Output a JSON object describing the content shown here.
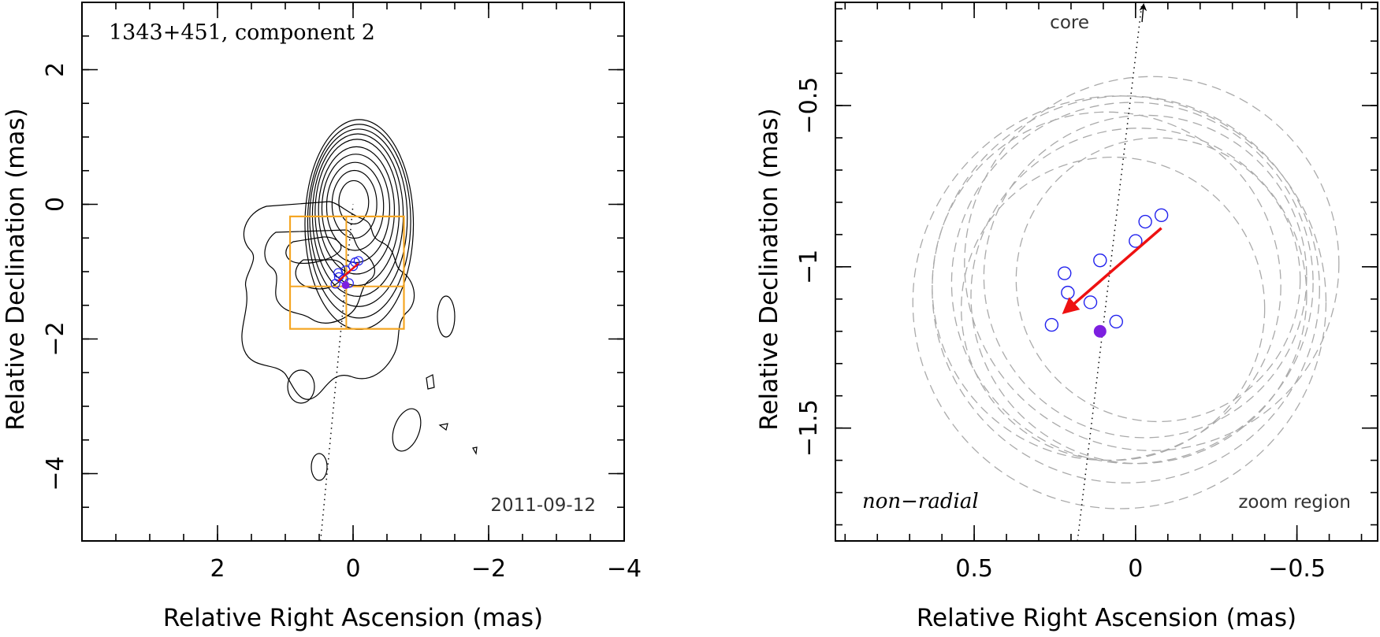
{
  "colors": {
    "contour": "#000000",
    "zoom_box": "#f5a623",
    "epoch_marker": "#2222ee",
    "reference_marker": "#7d1fe0",
    "arrow": "#ee1111",
    "halo": "#aaaaaa"
  },
  "chart_data": [
    {
      "type": "contour_map",
      "title": "1343+451, component 2",
      "annotation": "2011-09-12",
      "xlabel": "Relative Right Ascension (mas)",
      "ylabel": "Relative Declination (mas)",
      "xlim": [
        4.0,
        -4.0
      ],
      "ylim": [
        -5.0,
        3.0
      ],
      "x_ticks": [
        2,
        0,
        -2,
        -4
      ],
      "x_tick_labels": [
        "2",
        "0",
        "−2",
        "−4"
      ],
      "y_ticks": [
        2,
        0,
        -2,
        -4
      ],
      "y_tick_labels": [
        "2",
        "0",
        "−2",
        "−4"
      ],
      "grid": false,
      "zoom_box": {
        "x_range": [
          0.93,
          -0.75
        ],
        "y_range": [
          -1.85,
          -0.18
        ],
        "cross_x": 0.1,
        "cross_y": -1.22
      },
      "ridge_line": {
        "x": [
          0.48,
          0.0
        ],
        "y": [
          -5.0,
          0.0
        ]
      },
      "contour_levels": [
        {
          "rx": 0.22,
          "ry": 0.32,
          "cx": -0.01,
          "cy": 0.03
        },
        {
          "rx": 0.33,
          "ry": 0.5,
          "cx": -0.02,
          "cy": 0.0
        },
        {
          "rx": 0.42,
          "ry": 0.65,
          "cx": -0.03,
          "cy": -0.03
        },
        {
          "rx": 0.5,
          "ry": 0.8,
          "cx": -0.04,
          "cy": -0.06
        },
        {
          "rx": 0.56,
          "ry": 0.94,
          "cx": -0.05,
          "cy": -0.09
        },
        {
          "rx": 0.62,
          "ry": 1.08,
          "cx": -0.06,
          "cy": -0.12
        },
        {
          "rx": 0.67,
          "ry": 1.2,
          "cx": -0.07,
          "cy": -0.16
        },
        {
          "rx": 0.72,
          "ry": 1.31,
          "cx": -0.08,
          "cy": -0.2
        },
        {
          "rx": 0.76,
          "ry": 1.43,
          "cx": -0.09,
          "cy": -0.25
        },
        {
          "rx": 0.8,
          "ry": 1.55,
          "cx": -0.09,
          "cy": -0.3
        }
      ]
    },
    {
      "type": "scatter",
      "title": "",
      "annotation_left": "non−radial",
      "annotation_right": "zoom region",
      "core_label": "core",
      "xlabel": "Relative Right Ascension (mas)",
      "ylabel": "Relative Declination (mas)",
      "xlim": [
        0.93,
        -0.75
      ],
      "ylim": [
        -1.85,
        -0.18
      ],
      "x_ticks": [
        0.5,
        0,
        -0.5
      ],
      "x_tick_labels": [
        "0.5",
        "0",
        "−0.5"
      ],
      "y_ticks": [
        -0.5,
        -1,
        -1.5
      ],
      "y_tick_labels": [
        "−0.5",
        "−1",
        "−1.5"
      ],
      "grid": false,
      "epoch_positions": {
        "x": [
          0.26,
          0.21,
          0.22,
          0.14,
          0.11,
          0.06,
          0.0,
          -0.03,
          -0.08
        ],
        "y": [
          -1.18,
          -1.08,
          -1.02,
          -1.11,
          -0.98,
          -1.17,
          -0.92,
          -0.86,
          -0.84
        ]
      },
      "reference_position": {
        "x": 0.11,
        "y": -1.2
      },
      "motion_vector": {
        "from": [
          -0.08,
          -0.88
        ],
        "to": [
          0.22,
          -1.14
        ]
      },
      "ridge_line": {
        "x": [
          0.18,
          -0.02
        ],
        "y": [
          -1.85,
          -0.18
        ]
      },
      "beam_halos": [
        {
          "cx": 0.03,
          "cy": -1.07,
          "r": 0.6
        },
        {
          "cx": 0.05,
          "cy": -1.11,
          "r": 0.64
        },
        {
          "cx": 0.01,
          "cy": -1.05,
          "r": 0.56
        },
        {
          "cx": -0.03,
          "cy": -1.03,
          "r": 0.5
        },
        {
          "cx": -0.07,
          "cy": -1.04,
          "r": 0.44
        },
        {
          "cx": -0.01,
          "cy": -1.09,
          "r": 0.52
        },
        {
          "cx": 0.07,
          "cy": -1.13,
          "r": 0.47
        },
        {
          "cx": -0.05,
          "cy": -0.99,
          "r": 0.58
        },
        {
          "cx": 0.09,
          "cy": -1.06,
          "r": 0.54
        }
      ]
    }
  ]
}
